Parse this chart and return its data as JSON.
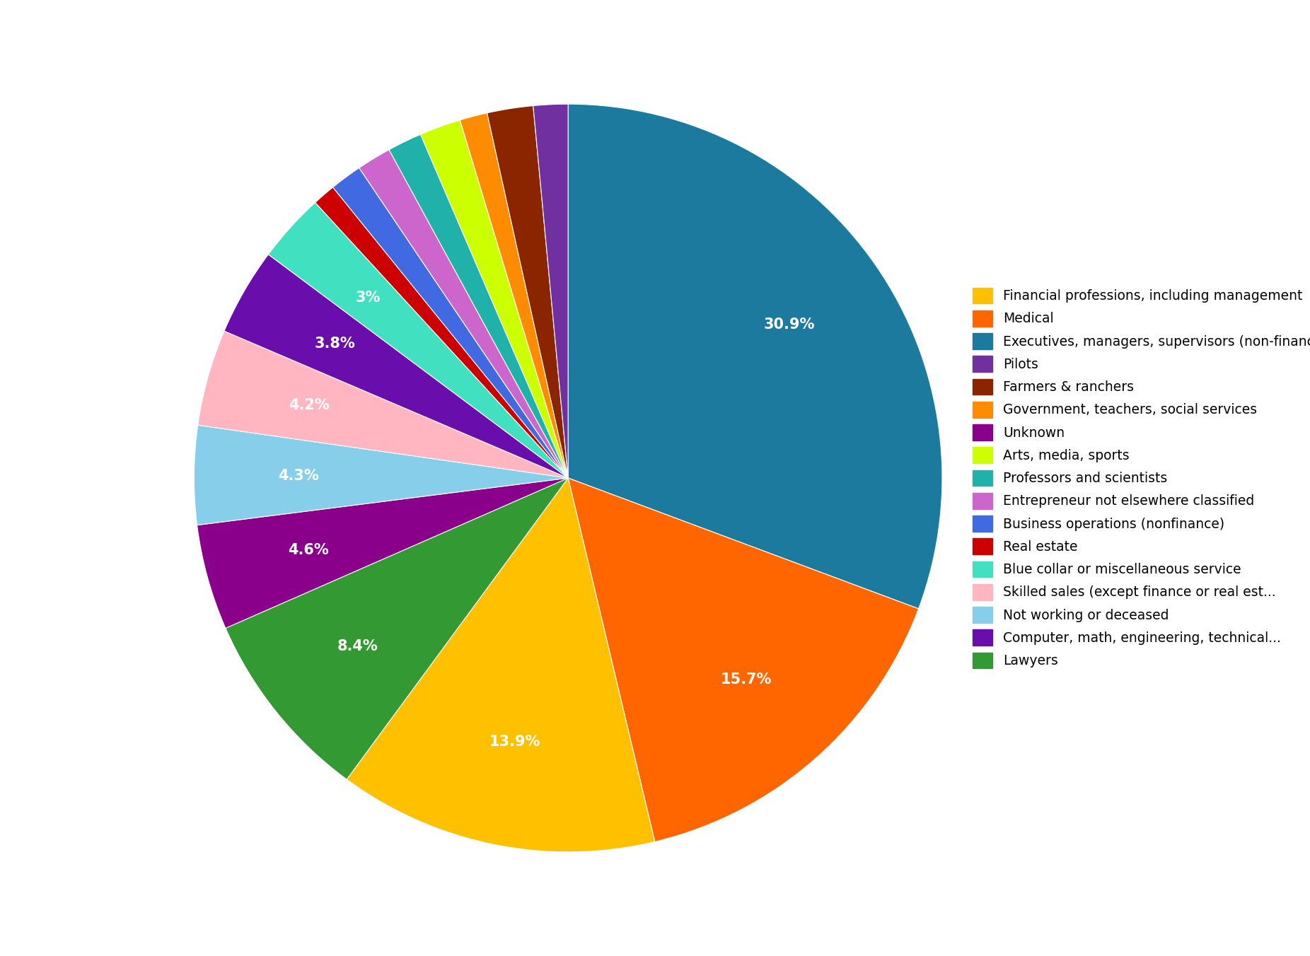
{
  "categories": [
    "Executives, managers, supervisors (non-finance)",
    "Medical",
    "Financial professions, including management",
    "Lawyers",
    "Unknown",
    "Not working or deceased",
    "Skilled sales (except finance or real est...",
    "Computer, math, engineering, technical...",
    "Blue collar or miscellaneous service",
    "Real estate",
    "Business operations (nonfinance)",
    "Entrepreneur not elsewhere classified",
    "Professors and scientists",
    "Arts, media, sports",
    "Government, teachers, social services",
    "Farmers & ranchers",
    "Pilots"
  ],
  "values": [
    30.9,
    15.7,
    13.9,
    8.4,
    4.6,
    4.3,
    4.2,
    3.8,
    3.0,
    1.0,
    1.4,
    1.5,
    1.5,
    1.8,
    1.2,
    2.0,
    1.5
  ],
  "colors": [
    "#1B7A9E",
    "#FF6600",
    "#FFC000",
    "#339933",
    "#8B008B",
    "#87CEEB",
    "#FFB6C1",
    "#6A0DAD",
    "#40E0C0",
    "#CC0000",
    "#4169E1",
    "#CC66CC",
    "#20B2AA",
    "#CCFF00",
    "#FF8C00",
    "#8B2500",
    "#7030A0"
  ],
  "pct_labels": [
    {
      "value": 30.9,
      "label": "30.9%"
    },
    {
      "value": 15.7,
      "label": "15.7%"
    },
    {
      "value": 13.9,
      "label": "13.9%"
    },
    {
      "value": 8.4,
      "label": "8.4%"
    },
    {
      "value": 4.6,
      "label": "4.6%"
    },
    {
      "value": 4.3,
      "label": "4.3%"
    },
    {
      "value": 4.2,
      "label": "4.2%"
    },
    {
      "value": 3.8,
      "label": "3.8%"
    },
    {
      "value": 3.0,
      "label": "3%"
    }
  ],
  "legend_order": [
    "Financial professions, including management",
    "Medical",
    "Executives, managers, supervisors (non-finance)",
    "Pilots",
    "Farmers & ranchers",
    "Government, teachers, social services",
    "Unknown",
    "Arts, media, sports",
    "Professors and scientists",
    "Entrepreneur not elsewhere classified",
    "Business operations (nonfinance)",
    "Real estate",
    "Blue collar or miscellaneous service",
    "Skilled sales (except finance or real est...",
    "Not working or deceased",
    "Computer, math, engineering, technical...",
    "Lawyers"
  ],
  "legend_colors_order": [
    "#FFC000",
    "#FF6600",
    "#1B7A9E",
    "#7030A0",
    "#8B2500",
    "#FF8C00",
    "#8B008B",
    "#CCFF00",
    "#20B2AA",
    "#CC66CC",
    "#4169E1",
    "#CC0000",
    "#40E0C0",
    "#FFB6C1",
    "#87CEEB",
    "#6A0DAD",
    "#339933"
  ],
  "background_color": "#FFFFFF",
  "startangle": 90,
  "label_fontsize": 15,
  "legend_fontsize": 13.5
}
